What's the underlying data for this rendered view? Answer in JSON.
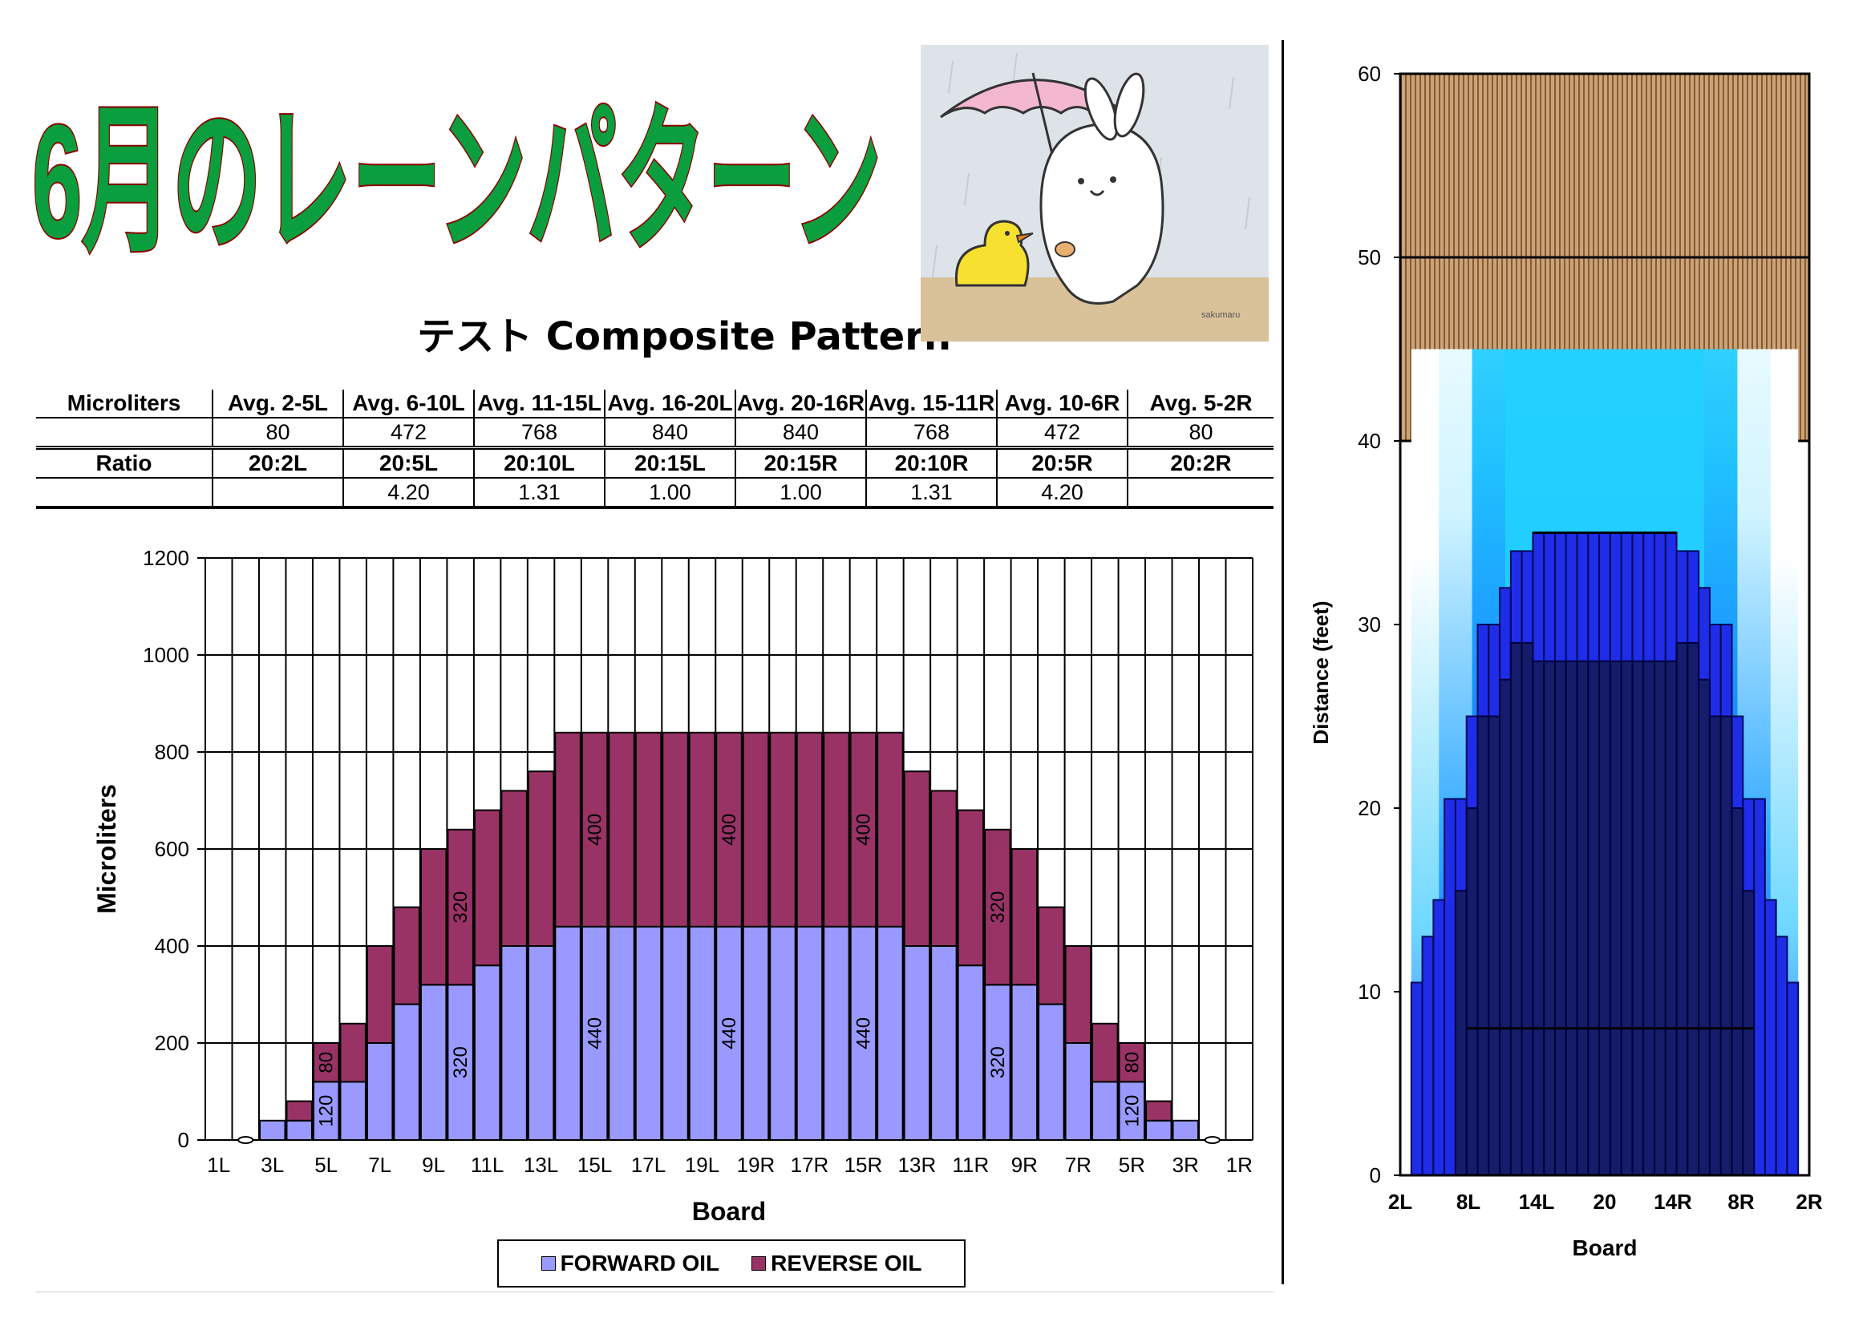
{
  "title": "6月のレーンパターン",
  "subtitle": "テスト Composite Pattern",
  "colors": {
    "title_fill": "#0a9e3f",
    "title_stroke": "#8b0000",
    "forward": "#9999ff",
    "reverse": "#993366"
  },
  "table": {
    "header": [
      "Microliters",
      "Avg. 2-5L",
      "Avg. 6-10L",
      "Avg. 11-15L",
      "Avg. 16-20L",
      "Avg. 20-16R",
      "Avg. 15-11R",
      "Avg. 10-6R",
      "Avg. 5-2R"
    ],
    "microliters": [
      "",
      "80",
      "472",
      "768",
      "840",
      "840",
      "768",
      "472",
      "80"
    ],
    "ratio_header": [
      "Ratio",
      "20:2L",
      "20:5L",
      "20:10L",
      "20:15L",
      "20:15R",
      "20:10R",
      "20:5R",
      "20:2R"
    ],
    "ratio_values": [
      "",
      "",
      "4.20",
      "1.31",
      "1.00",
      "1.00",
      "1.31",
      "4.20",
      ""
    ]
  },
  "chart_data": [
    {
      "type": "bar",
      "stacked": true,
      "xlabel": "Board",
      "ylabel": "Microliters",
      "ylim": [
        0,
        1200
      ],
      "yticks": [
        0,
        200,
        400,
        600,
        800,
        1000,
        1200
      ],
      "categories": [
        "1L",
        "2L",
        "3L",
        "4L",
        "5L",
        "6L",
        "7L",
        "8L",
        "9L",
        "10L",
        "11L",
        "12L",
        "13L",
        "14L",
        "15L",
        "16L",
        "17L",
        "18L",
        "19L",
        "20L",
        "19R",
        "18R",
        "17R",
        "16R",
        "15R",
        "14R",
        "13R",
        "12R",
        "11R",
        "10R",
        "9R",
        "8R",
        "7R",
        "6R",
        "5R",
        "4R",
        "3R",
        "2R",
        "1R"
      ],
      "tick_labels": [
        "1L",
        "3L",
        "5L",
        "7L",
        "9L",
        "11L",
        "13L",
        "15L",
        "17L",
        "19L",
        "19R",
        "17R",
        "15R",
        "13R",
        "11R",
        "9R",
        "7R",
        "5R",
        "3R",
        "1R"
      ],
      "series": [
        {
          "name": "FORWARD OIL",
          "values": [
            0,
            0,
            40,
            40,
            120,
            120,
            200,
            280,
            320,
            320,
            360,
            400,
            400,
            440,
            440,
            440,
            440,
            440,
            440,
            440,
            440,
            440,
            440,
            440,
            440,
            440,
            400,
            400,
            360,
            320,
            320,
            280,
            200,
            120,
            120,
            40,
            40,
            0,
            0
          ]
        },
        {
          "name": "REVERSE OIL",
          "values": [
            0,
            0,
            0,
            40,
            80,
            120,
            200,
            200,
            280,
            320,
            320,
            320,
            360,
            400,
            400,
            400,
            400,
            400,
            400,
            400,
            400,
            400,
            400,
            400,
            400,
            400,
            360,
            320,
            320,
            320,
            280,
            200,
            200,
            120,
            80,
            40,
            0,
            0,
            0
          ]
        }
      ],
      "data_labels": [
        {
          "index": 4,
          "series": "FORWARD OIL",
          "text": "120"
        },
        {
          "index": 4,
          "series": "REVERSE OIL",
          "text": "80"
        },
        {
          "index": 9,
          "series": "FORWARD OIL",
          "text": "320"
        },
        {
          "index": 9,
          "series": "REVERSE OIL",
          "text": "320"
        },
        {
          "index": 14,
          "series": "FORWARD OIL",
          "text": "440"
        },
        {
          "index": 14,
          "series": "REVERSE OIL",
          "text": "400"
        },
        {
          "index": 19,
          "series": "FORWARD OIL",
          "text": "440"
        },
        {
          "index": 19,
          "series": "REVERSE OIL",
          "text": "400"
        },
        {
          "index": 24,
          "series": "FORWARD OIL",
          "text": "440"
        },
        {
          "index": 24,
          "series": "REVERSE OIL",
          "text": "400"
        },
        {
          "index": 29,
          "series": "FORWARD OIL",
          "text": "320"
        },
        {
          "index": 29,
          "series": "REVERSE OIL",
          "text": "320"
        },
        {
          "index": 34,
          "series": "FORWARD OIL",
          "text": "120"
        },
        {
          "index": 34,
          "series": "REVERSE OIL",
          "text": "80"
        }
      ],
      "legend": "bottom",
      "grid": true
    },
    {
      "type": "heatmap",
      "xlabel": "Board",
      "ylabel": "Distance (feet)",
      "ylim": [
        0,
        60
      ],
      "yticks": [
        0,
        10,
        20,
        30,
        40,
        50,
        60
      ],
      "tick_labels": [
        "2L",
        "8L",
        "14L",
        "20",
        "14R",
        "8R",
        "2R"
      ],
      "boards": 39,
      "x_range": [
        1.5,
        38.5
      ],
      "lane_end_feet": 40,
      "pattern_end_feet": 45,
      "pattern_end_range": [
        3,
        37
      ],
      "reference_lines_feet": [
        50
      ],
      "heavy_region": {
        "feet": 35,
        "range": [
          14,
          26
        ]
      },
      "board_profile_feet": [
        0,
        0,
        10.5,
        13,
        15,
        20.5,
        20.5,
        25,
        30,
        30,
        32,
        34,
        34,
        35,
        35,
        35,
        35,
        35,
        35,
        35,
        35,
        35,
        35,
        35,
        35,
        35,
        34,
        34,
        32,
        30,
        30,
        25,
        20.5,
        20.5,
        15,
        13,
        10.5,
        0,
        0
      ],
      "dark_core": {
        "feet": 28,
        "range": [
          14,
          26
        ],
        "base_feet": 8
      }
    }
  ]
}
